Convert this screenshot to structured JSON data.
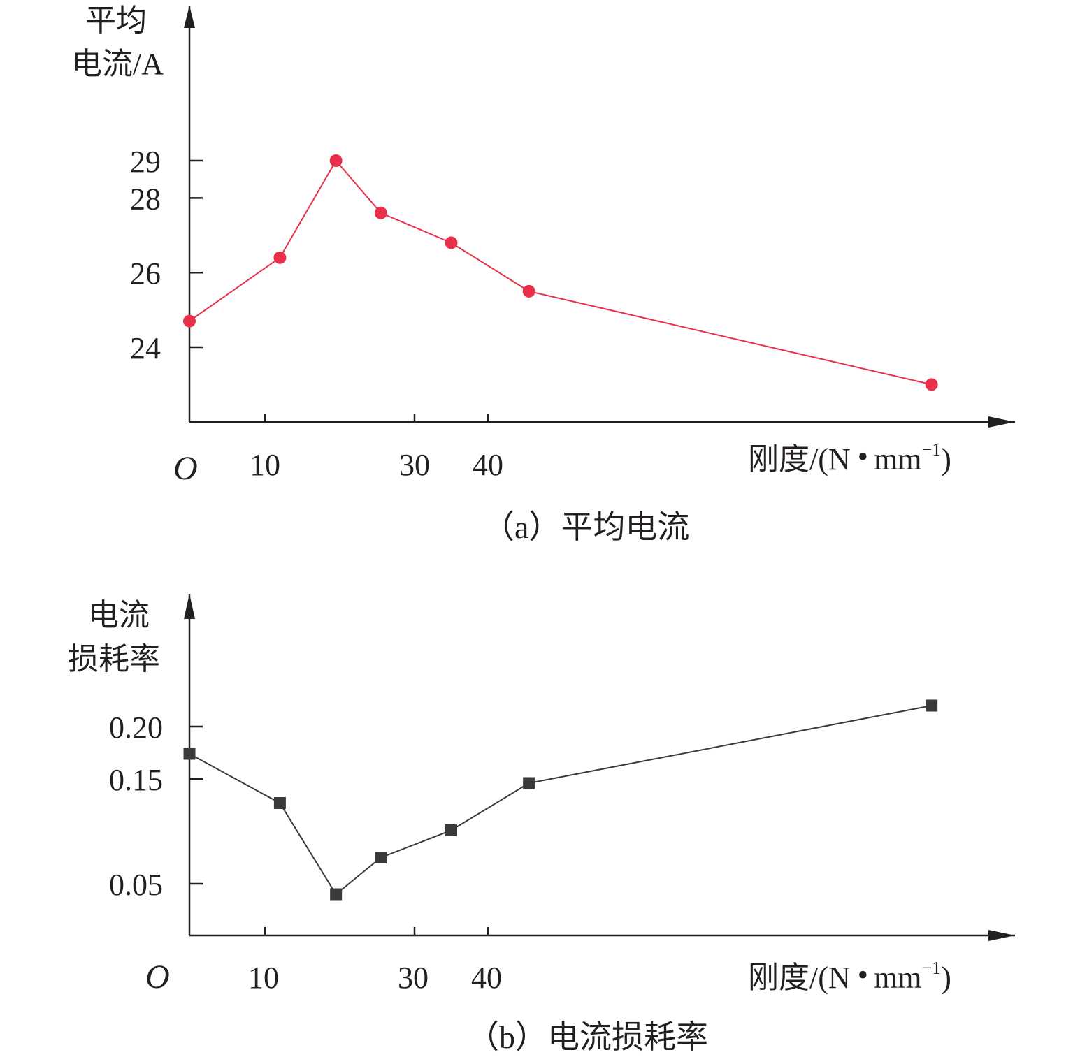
{
  "chart_data": [
    {
      "type": "line",
      "caption": "（a）平均电流",
      "ylabel_line1": "平均",
      "ylabel_line2": "电流/A",
      "xlabel_main": "刚度/(N",
      "xlabel_unit": "mm",
      "xlabel_exp": "−1",
      "xlabel_close": ")",
      "origin_label": "O",
      "x_ticks": [
        10,
        30,
        40
      ],
      "y_ticks": [
        24,
        26,
        28,
        29
      ],
      "x_axis_break": true,
      "y_axis_break": true,
      "grid": false,
      "marker": "circle",
      "color": "#e8304a",
      "series": [
        {
          "x": [
            0,
            12,
            19.5,
            25.5,
            35,
            45.5,
            99.5
          ],
          "y": [
            24.7,
            26.4,
            29.0,
            27.6,
            26.8,
            25.5,
            23.0
          ]
        }
      ]
    },
    {
      "type": "line",
      "caption": "（b）电流损耗率",
      "ylabel_line1": "电流",
      "ylabel_line2": "损耗率",
      "xlabel_main": "刚度/(N",
      "xlabel_unit": "mm",
      "xlabel_exp": "−1",
      "xlabel_close": ")",
      "origin_label": "O",
      "x_ticks": [
        10,
        30,
        40
      ],
      "y_ticks": [
        "0.05",
        "0.15",
        "0.20"
      ],
      "x_axis_break": true,
      "y_axis_break": true,
      "grid": false,
      "marker": "square",
      "color": "#3a3a3d",
      "series": [
        {
          "x": [
            0,
            12,
            19.5,
            25.5,
            35,
            45.5,
            99.5
          ],
          "y": [
            0.174,
            0.127,
            0.04,
            0.075,
            0.101,
            0.146,
            0.22
          ]
        }
      ]
    }
  ]
}
